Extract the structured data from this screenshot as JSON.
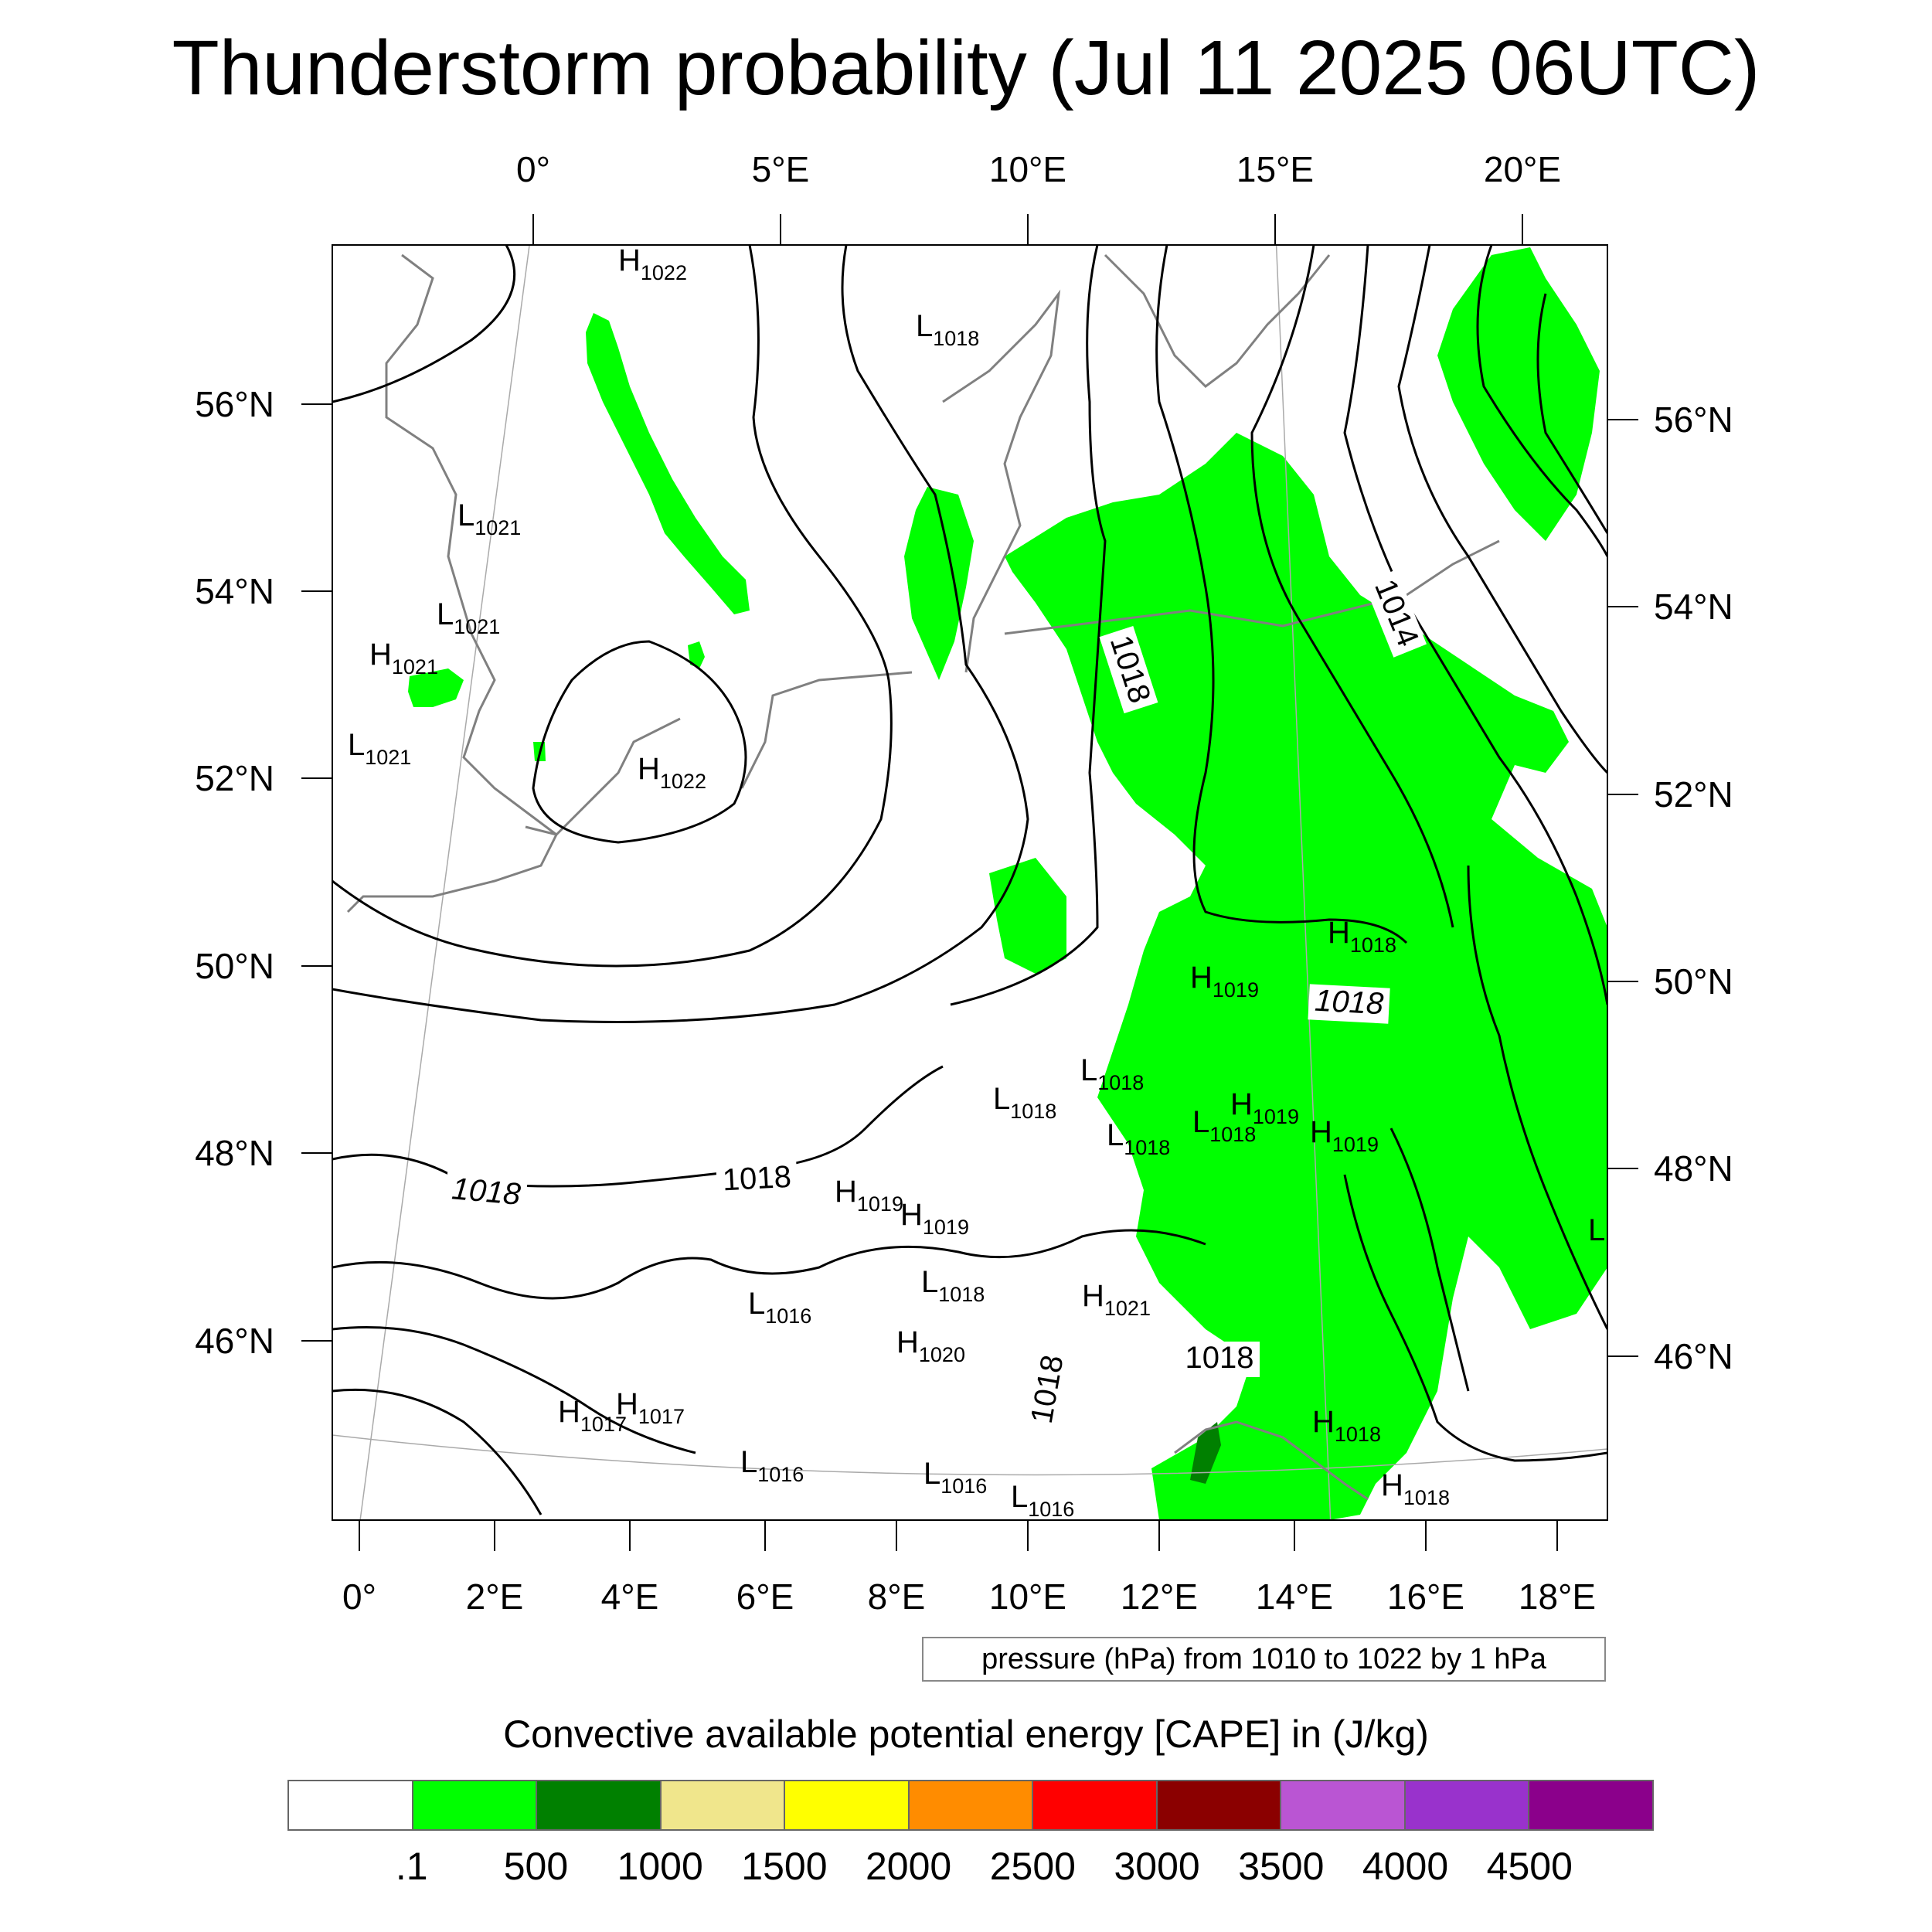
{
  "title": "Thunderstorm probability (Jul 11 2025 06UTC)",
  "map": {
    "top_lon_labels": [
      "0°",
      "5°E",
      "10°E",
      "15°E",
      "20°E"
    ],
    "bottom_lon_labels": [
      "0°",
      "2°E",
      "4°E",
      "6°E",
      "8°E",
      "10°E",
      "12°E",
      "14°E",
      "16°E",
      "18°E"
    ],
    "left_lat_labels": [
      "56°N",
      "54°N",
      "52°N",
      "50°N",
      "48°N",
      "46°N"
    ],
    "right_lat_labels": [
      "56°N",
      "54°N",
      "52°N",
      "50°N",
      "48°N",
      "46°N"
    ],
    "contour_labels": [
      "1018",
      "1018",
      "1018",
      "1018",
      "1018",
      "1014",
      "1018"
    ],
    "pressure_centers": [
      {
        "type": "H",
        "value": "1022"
      },
      {
        "type": "L",
        "value": "1018"
      },
      {
        "type": "L",
        "value": "1021"
      },
      {
        "type": "L",
        "value": "1021"
      },
      {
        "type": "H",
        "value": "1021"
      },
      {
        "type": "L",
        "value": "1021"
      },
      {
        "type": "H",
        "value": "1022"
      },
      {
        "type": "H",
        "value": "1018"
      },
      {
        "type": "H",
        "value": "1019"
      },
      {
        "type": "L",
        "value": "1018"
      },
      {
        "type": "L",
        "value": "1018"
      },
      {
        "type": "L",
        "value": "1018"
      },
      {
        "type": "L",
        "value": "1018"
      },
      {
        "type": "H",
        "value": "1019"
      },
      {
        "type": "H",
        "value": "1019"
      },
      {
        "type": "H",
        "value": "1019"
      },
      {
        "type": "H",
        "value": "1019"
      },
      {
        "type": "L",
        "value": "1018"
      },
      {
        "type": "L",
        "value": "1016"
      },
      {
        "type": "H",
        "value": "1021"
      },
      {
        "type": "H",
        "value": "1020"
      },
      {
        "type": "H",
        "value": "1017"
      },
      {
        "type": "H",
        "value": "1017"
      },
      {
        "type": "L",
        "value": "1016"
      },
      {
        "type": "L",
        "value": "1016"
      },
      {
        "type": "L",
        "value": "1016"
      },
      {
        "type": "H",
        "value": "1018"
      },
      {
        "type": "H",
        "value": "1018"
      },
      {
        "type": "L",
        "value": ""
      }
    ]
  },
  "pressure_note": "pressure (hPa) from 1010 to 1022 by 1 hPa",
  "legend": {
    "title": "Convective available potential energy [CAPE] in (J/kg)",
    "colors": [
      "#ffffff",
      "#00ff00",
      "#008000",
      "#f0e68c",
      "#ffff00",
      "#ff8c00",
      "#ff0000",
      "#8b0000",
      "#ba55d3",
      "#9932cc",
      "#8b008b"
    ],
    "labels": [
      ".1",
      "500",
      "1000",
      "1500",
      "2000",
      "2500",
      "3000",
      "3500",
      "4000",
      "4500"
    ]
  }
}
